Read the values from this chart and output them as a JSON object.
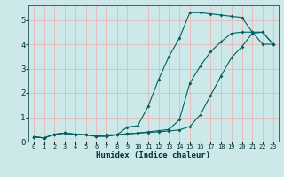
{
  "xlabel": "Humidex (Indice chaleur)",
  "background_color": "#cde8e8",
  "grid_color": "#e8b8b8",
  "line_color": "#006060",
  "xlim": [
    -0.5,
    23.5
  ],
  "ylim": [
    0,
    5.6
  ],
  "x_ticks": [
    0,
    1,
    2,
    3,
    4,
    5,
    6,
    7,
    8,
    9,
    10,
    11,
    12,
    13,
    14,
    15,
    16,
    17,
    18,
    19,
    20,
    21,
    22,
    23
  ],
  "y_ticks": [
    0,
    1,
    2,
    3,
    4,
    5
  ],
  "curve1_x": [
    0,
    1,
    2,
    3,
    4,
    5,
    6,
    7,
    8,
    9,
    10,
    11,
    12,
    13,
    14,
    15,
    16,
    17,
    18,
    19,
    20,
    21,
    22,
    23
  ],
  "curve1_y": [
    0.2,
    0.15,
    0.3,
    0.35,
    0.3,
    0.28,
    0.22,
    0.28,
    0.28,
    0.6,
    0.65,
    1.45,
    2.55,
    3.5,
    4.25,
    5.3,
    5.3,
    5.25,
    5.2,
    5.15,
    5.1,
    4.5,
    4.5,
    4.0
  ],
  "curve2_x": [
    0,
    1,
    2,
    3,
    4,
    5,
    6,
    7,
    8,
    9,
    10,
    11,
    12,
    13,
    14,
    15,
    16,
    17,
    18,
    19,
    20,
    21,
    22,
    23
  ],
  "curve2_y": [
    0.2,
    0.15,
    0.3,
    0.35,
    0.3,
    0.28,
    0.22,
    0.22,
    0.28,
    0.32,
    0.35,
    0.4,
    0.45,
    0.5,
    0.9,
    2.4,
    3.1,
    3.7,
    4.1,
    4.45,
    4.5,
    4.5,
    4.0,
    4.0
  ],
  "curve3_x": [
    0,
    1,
    2,
    3,
    4,
    5,
    6,
    7,
    8,
    9,
    10,
    11,
    12,
    13,
    14,
    15,
    16,
    17,
    18,
    19,
    20,
    21,
    22,
    23
  ],
  "curve3_y": [
    0.2,
    0.15,
    0.3,
    0.35,
    0.3,
    0.28,
    0.22,
    0.22,
    0.28,
    0.32,
    0.35,
    0.38,
    0.4,
    0.44,
    0.48,
    0.62,
    1.1,
    1.9,
    2.7,
    3.45,
    3.9,
    4.45,
    4.5,
    4.0
  ]
}
